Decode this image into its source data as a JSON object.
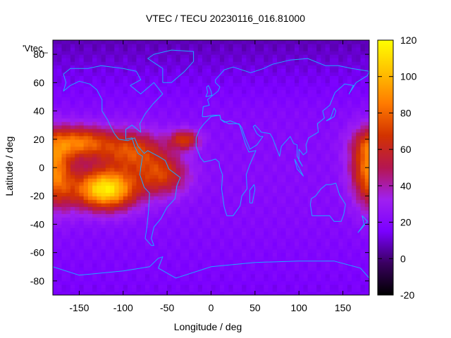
{
  "chart_data": {
    "type": "heatmap",
    "title": "VTEC / TECU 20230116_016.81000",
    "xlabel": "Longitude / deg",
    "ylabel": "Latitude / deg",
    "key_label": "'Vtec_",
    "xlim": [
      -180,
      180
    ],
    "ylim": [
      -90,
      90
    ],
    "x_ticks": [
      -150,
      -100,
      -50,
      0,
      50,
      100,
      150
    ],
    "y_ticks": [
      -80,
      -60,
      -40,
      -20,
      0,
      20,
      40,
      60,
      80
    ],
    "colorbar": {
      "range": [
        -20,
        120
      ],
      "ticks": [
        -20,
        0,
        20,
        40,
        60,
        80,
        100,
        120
      ],
      "palette": [
        "#000000",
        "#3a0060",
        "#7a00ff",
        "#a020f0",
        "#b51650",
        "#d23200",
        "#ff7a00",
        "#ffc000",
        "#ffff00"
      ]
    },
    "coastline_color": "#1fa8ff",
    "grid_resolution_deg": [
      5,
      2.5
    ],
    "hotspots": [
      {
        "lon": -120,
        "lat": -15,
        "value": 110,
        "sx": 25,
        "sy": 10
      },
      {
        "lon": -150,
        "lat": 18,
        "value": 75,
        "sx": 25,
        "sy": 8
      },
      {
        "lon": -90,
        "lat": 12,
        "value": 65,
        "sx": 25,
        "sy": 10
      },
      {
        "lon": -55,
        "lat": -5,
        "value": 60,
        "sx": 20,
        "sy": 10
      },
      {
        "lon": -30,
        "lat": 20,
        "value": 60,
        "sx": 12,
        "sy": 5
      },
      {
        "lon": 178,
        "lat": 5,
        "value": 55,
        "sx": 14,
        "sy": 15
      },
      {
        "lon": -175,
        "lat": -10,
        "value": 50,
        "sx": 15,
        "sy": 15
      }
    ],
    "background_value": 15
  }
}
